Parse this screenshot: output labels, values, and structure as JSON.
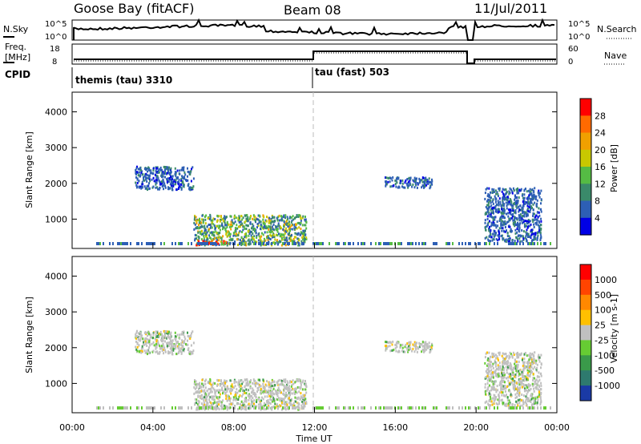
{
  "header": {
    "station": "Goose Bay (fitACF)",
    "beam": "Beam 08",
    "date": "11/Jul/2011"
  },
  "top_panel": {
    "left_label": "N.Sky",
    "left_ticks": [
      "10^5",
      "10^0"
    ],
    "right_label": "N.Search",
    "right_ticks": [
      "10^5",
      "10^0"
    ]
  },
  "freq_panel": {
    "left_label_1": "Freq.",
    "left_label_2": "[MHz]",
    "left_ticks": [
      "18",
      "8"
    ],
    "right_label": "Nave",
    "right_ticks": [
      "60",
      "0"
    ]
  },
  "cpid_panel": {
    "label": "CPID",
    "modes": [
      "themis (tau) 3310",
      "tau (fast) 503"
    ]
  },
  "chart_data": [
    {
      "type": "heatmap",
      "name": "power",
      "ylabel": "Slant Range [km]",
      "xlabel": "",
      "yticks": [
        "1000",
        "2000",
        "3000",
        "4000"
      ],
      "ylim": [
        180,
        4550
      ],
      "xlim_hours": [
        0,
        24
      ],
      "colorbar": {
        "label": "Power [dB]",
        "ticks": [
          "4",
          "8",
          "12",
          "16",
          "20",
          "24",
          "28"
        ],
        "range": [
          0,
          30
        ],
        "colors": [
          "#0000e6",
          "#2d5fb5",
          "#3a8a6a",
          "#55bb44",
          "#c8c800",
          "#f0a000",
          "#ff6a00",
          "#ff0000"
        ]
      },
      "echo_regions": [
        {
          "t0": 6.0,
          "t1": 11.6,
          "r0": 300,
          "r1": 1150,
          "level": "mid"
        },
        {
          "t0": 3.1,
          "t1": 6.0,
          "r0": 1850,
          "r1": 2500,
          "level": "low"
        },
        {
          "t0": 6.1,
          "t1": 7.6,
          "r0": 300,
          "r1": 420,
          "level": "high"
        },
        {
          "t0": 15.4,
          "t1": 17.8,
          "r0": 1900,
          "r1": 2200,
          "level": "low"
        },
        {
          "t0": 20.4,
          "t1": 23.2,
          "r0": 400,
          "r1": 1900,
          "level": "low"
        }
      ]
    },
    {
      "type": "heatmap",
      "name": "velocity",
      "ylabel": "Slant Range [km]",
      "xlabel": "Time UT",
      "yticks": [
        "1000",
        "2000",
        "3000",
        "4000"
      ],
      "ylim": [
        180,
        4550
      ],
      "xticks": [
        "00:00",
        "04:00",
        "08:00",
        "12:00",
        "16:00",
        "20:00",
        "00:00"
      ],
      "colorbar": {
        "label": "Velocity [m s-1]",
        "ticks": [
          "1000",
          "500",
          "100",
          "25",
          "-25",
          "-100",
          "-500",
          "-1000"
        ],
        "colors": [
          "#1a3aa6",
          "#2e7a6e",
          "#3a9a4a",
          "#66cc33",
          "#c0c0c0",
          "#ffc000",
          "#ff8800",
          "#ff4400",
          "#ff0000"
        ]
      }
    }
  ]
}
